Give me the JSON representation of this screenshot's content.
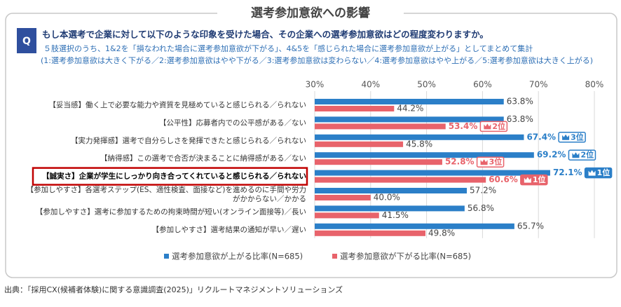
{
  "header": {
    "title": "選考参加意欲への影響",
    "badge": "Q",
    "question": "もし本選考で企業に対して以下のような印象を受けた場合、その企業への選考参加意欲はどの程度変わりますか。",
    "notes": [
      "５肢選択のうち、1&2を「損なわれた場合に選考参加意欲が下がる」、4&5を「感じられた場合に選考参加意欲が上がる」としてまとめて集計",
      "(1:選考参加意欲は大きく下がる／2:選考参加意欲はやや下がる／3:選考参加意欲は変わらない／4:選考参加意欲はやや上がる／5:選考参加意欲は大きく上がる)"
    ]
  },
  "chart_data": {
    "type": "bar",
    "orientation": "horizontal",
    "categories": [
      "【妥当感】働く上で必要な能力や資質を見極めていると感じられる／られない",
      "【公平性】応募者内での公平感がある／ない",
      "【実力発揮感】選考で自分らしさを発揮できたと感じられる／られない",
      "【納得感】この選考で合否が決まることに納得感がある／ない",
      "【誠実さ】企業が学生にしっかり向き合ってくれていると感じられる／られない",
      [
        "【参加しやすさ】各選考ステップ(ES、適性検査、面接など)を進めるのに手間や労力",
        "がかからない／かかる"
      ],
      "【参加しやすさ】選考に参加するための拘束時間が短い(オンライン面接等)／長い",
      "【参加しやすさ】選考結果の通知が早い／遅い"
    ],
    "highlight": 4,
    "series": [
      {
        "name": "選考参加意欲が上がる比率(N=685)",
        "color": "#2b7fc8",
        "values": [
          63.8,
          63.8,
          67.4,
          69.2,
          72.1,
          57.2,
          56.8,
          65.7
        ],
        "value_labels": [
          "63.8%",
          "63.8%",
          "67.4%",
          "69.2%",
          "72.1%",
          "57.2%",
          "56.8%",
          "65.7%"
        ],
        "ranks": [
          null,
          null,
          "3位",
          "2位",
          "1位",
          null,
          null,
          null
        ]
      },
      {
        "name": "選考参加意欲が下がる比率(N=685)",
        "color": "#e8636b",
        "values": [
          44.2,
          53.4,
          45.8,
          52.8,
          60.6,
          40.0,
          41.5,
          49.8
        ],
        "value_labels": [
          "44.2%",
          "53.4%",
          "45.8%",
          "52.8%",
          "60.6%",
          "40.0%",
          "41.5%",
          "49.8%"
        ],
        "ranks": [
          null,
          "2位",
          null,
          "3位",
          "1位",
          null,
          null,
          null
        ]
      }
    ],
    "xlim": [
      30,
      80
    ],
    "xticks": [
      {
        "value": 30,
        "label": "30%"
      },
      {
        "value": 40,
        "label": "40%"
      },
      {
        "value": 50,
        "label": "50%"
      },
      {
        "value": 60,
        "label": "60%"
      },
      {
        "value": 70,
        "label": "70%"
      },
      {
        "value": 80,
        "label": "80%"
      }
    ],
    "grid": true
  },
  "source": "出典：「採用CX(候補者体験)に関する意識調査(2025)」リクルートマネジメントソリューションズ"
}
